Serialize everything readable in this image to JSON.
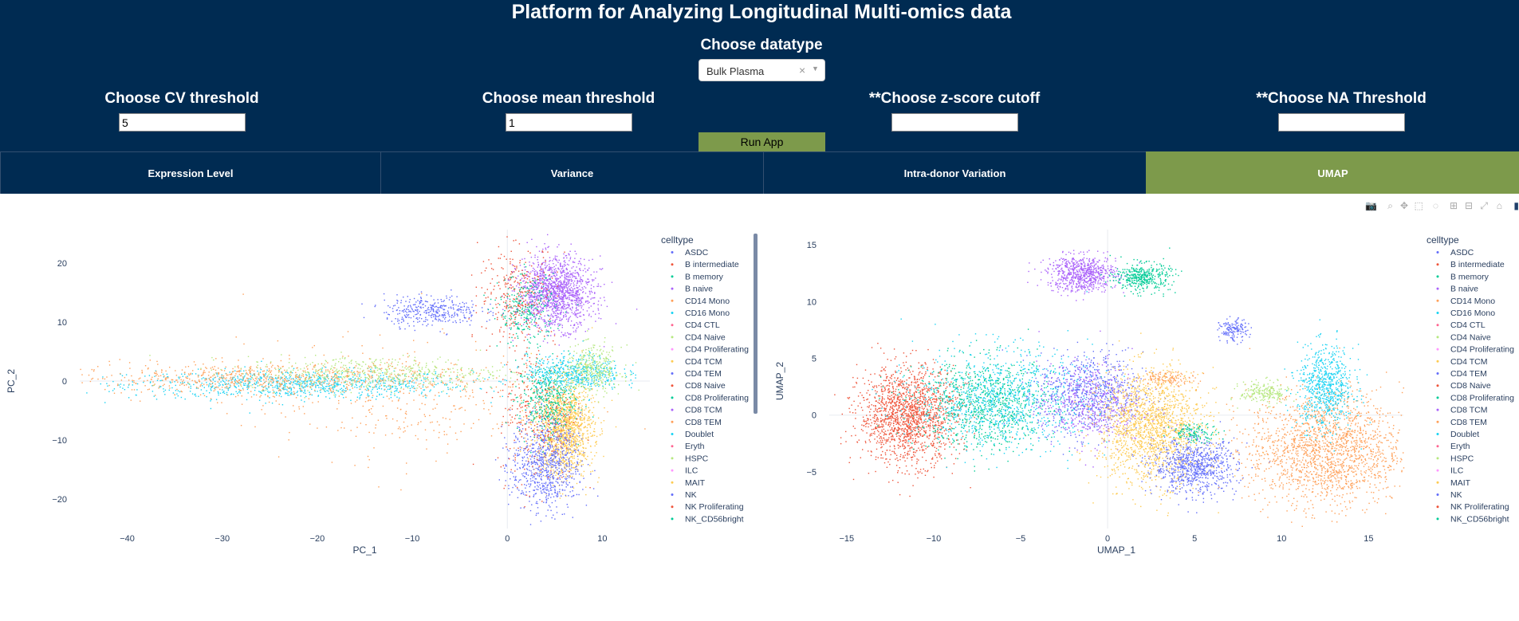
{
  "header": {
    "title": "Platform for Analyzing Longitudinal Multi-omics data",
    "datatype_label": "Choose datatype",
    "datatype_value": "Bulk Plasma",
    "cv_label": "Choose CV threshold",
    "cv_value": "5",
    "mean_label": "Choose mean threshold",
    "mean_value": "1",
    "zscore_label": "**Choose z-score cutoff",
    "zscore_value": "",
    "na_label": "**Choose NA Threshold",
    "na_value": "",
    "run_label": "Run App"
  },
  "tabs": [
    {
      "label": "Expression Level",
      "active": false
    },
    {
      "label": "Variance",
      "active": false
    },
    {
      "label": "Intra-donor Variation",
      "active": false
    },
    {
      "label": "UMAP",
      "active": true
    }
  ],
  "legend": {
    "title": "celltype",
    "items": [
      {
        "name": "ASDC",
        "color": "#636efa"
      },
      {
        "name": "B intermediate",
        "color": "#ef553b"
      },
      {
        "name": "B memory",
        "color": "#00cc96"
      },
      {
        "name": "B naive",
        "color": "#ab63fa"
      },
      {
        "name": "CD14 Mono",
        "color": "#ffa15a"
      },
      {
        "name": "CD16 Mono",
        "color": "#19d3f3"
      },
      {
        "name": "CD4 CTL",
        "color": "#ff6692"
      },
      {
        "name": "CD4 Naive",
        "color": "#b6e880"
      },
      {
        "name": "CD4 Proliferating",
        "color": "#ff97ff"
      },
      {
        "name": "CD4 TCM",
        "color": "#fecb52"
      },
      {
        "name": "CD4 TEM",
        "color": "#636efa"
      },
      {
        "name": "CD8 Naive",
        "color": "#ef553b"
      },
      {
        "name": "CD8 Proliferating",
        "color": "#00cc96"
      },
      {
        "name": "CD8 TCM",
        "color": "#ab63fa"
      },
      {
        "name": "CD8 TEM",
        "color": "#ffa15a"
      },
      {
        "name": "Doublet",
        "color": "#19d3f3"
      },
      {
        "name": "Eryth",
        "color": "#ff6692"
      },
      {
        "name": "HSPC",
        "color": "#b6e880"
      },
      {
        "name": "ILC",
        "color": "#ff97ff"
      },
      {
        "name": "MAIT",
        "color": "#fecb52"
      },
      {
        "name": "NK",
        "color": "#636efa"
      },
      {
        "name": "NK Proliferating",
        "color": "#ef553b"
      },
      {
        "name": "NK_CD56bright",
        "color": "#00cc96"
      }
    ]
  },
  "chart_data": [
    {
      "type": "scatter",
      "xlabel": "PC_1",
      "ylabel": "PC_2",
      "xlim": [
        -45,
        15
      ],
      "ylim": [
        -25,
        25
      ],
      "xticks": [
        -40,
        -30,
        -20,
        -10,
        0,
        10
      ],
      "yticks": [
        -20,
        -10,
        0,
        10,
        20
      ],
      "clusters": [
        {
          "celltype": "CD16 Mono",
          "color": "#19d3f3",
          "cx": -22,
          "cy": -0.5,
          "sx": 9,
          "sy": 1.2,
          "n": 900
        },
        {
          "celltype": "CD14 Mono",
          "color": "#ffa15a",
          "cx": -26,
          "cy": 0.5,
          "sx": 10,
          "sy": 1.3,
          "n": 700
        },
        {
          "celltype": "CD4 Naive",
          "color": "#b6e880",
          "cx": -14,
          "cy": 1.5,
          "sx": 7,
          "sy": 1.4,
          "n": 500
        },
        {
          "celltype": "CD14 Mono",
          "color": "#ffa15a",
          "cx": -12,
          "cy": -3,
          "sx": 8,
          "sy": 5,
          "n": 350
        },
        {
          "celltype": "ASDC",
          "color": "#636efa",
          "cx": -8,
          "cy": 12,
          "sx": 2.5,
          "sy": 1.3,
          "n": 350
        },
        {
          "celltype": "B naive",
          "color": "#ab63fa",
          "cx": 5,
          "cy": 15,
          "sx": 2,
          "sy": 3,
          "n": 1400
        },
        {
          "celltype": "B intermediate",
          "color": "#ef553b",
          "cx": 1,
          "cy": 15,
          "sx": 2,
          "sy": 4,
          "n": 300
        },
        {
          "celltype": "B memory",
          "color": "#00cc96",
          "cx": 2,
          "cy": 12,
          "sx": 1.5,
          "sy": 3,
          "n": 250
        },
        {
          "celltype": "CD4 TCM",
          "color": "#fecb52",
          "cx": 6,
          "cy": -8,
          "sx": 1.5,
          "sy": 4,
          "n": 1300
        },
        {
          "celltype": "NK",
          "color": "#636efa",
          "cx": 4,
          "cy": -14,
          "sx": 1.8,
          "sy": 4,
          "n": 800
        },
        {
          "celltype": "CD8 Naive",
          "color": "#ef553b",
          "cx": 3,
          "cy": -5,
          "sx": 2,
          "sy": 6,
          "n": 300
        },
        {
          "celltype": "CD8 Proliferating",
          "color": "#00cc96",
          "cx": 4,
          "cy": -3,
          "sx": 1.5,
          "sy": 3,
          "n": 350
        },
        {
          "celltype": "CD16 Mono",
          "color": "#19d3f3",
          "cx": 7,
          "cy": 1.5,
          "sx": 2.5,
          "sy": 1.5,
          "n": 500
        },
        {
          "celltype": "CD4 Naive",
          "color": "#b6e880",
          "cx": 9,
          "cy": 2,
          "sx": 1.5,
          "sy": 2,
          "n": 350
        }
      ]
    },
    {
      "type": "scatter",
      "xlabel": "UMAP_1",
      "ylabel": "UMAP_2",
      "xlim": [
        -16,
        17
      ],
      "ylim": [
        -10,
        16
      ],
      "xticks": [
        -15,
        -10,
        -5,
        0,
        5,
        10,
        15
      ],
      "yticks": [
        -5,
        0,
        5,
        10,
        15
      ],
      "clusters": [
        {
          "celltype": "B intermediate",
          "color": "#ef553b",
          "cx": -11.5,
          "cy": 0,
          "sx": 1.4,
          "sy": 2.1,
          "n": 1600
        },
        {
          "celltype": "CD8 Proliferating",
          "color": "#00cc96",
          "cx": -7,
          "cy": 1,
          "sx": 2,
          "sy": 2,
          "n": 900
        },
        {
          "celltype": "CD16 Mono",
          "color": "#19d3f3",
          "cx": -6,
          "cy": 1.5,
          "sx": 2.5,
          "sy": 2.2,
          "n": 900
        },
        {
          "celltype": "CD4 TEM",
          "color": "#636efa",
          "cx": -1,
          "cy": 2,
          "sx": 1.5,
          "sy": 1.8,
          "n": 700
        },
        {
          "celltype": "CD8 TCM",
          "color": "#ab63fa",
          "cx": -1,
          "cy": 1,
          "sx": 1.5,
          "sy": 1.8,
          "n": 500
        },
        {
          "celltype": "CD4 TCM",
          "color": "#fecb52",
          "cx": 2.5,
          "cy": -1,
          "sx": 1.5,
          "sy": 2.5,
          "n": 1600
        },
        {
          "celltype": "NK",
          "color": "#636efa",
          "cx": 5,
          "cy": -4.5,
          "sx": 1.2,
          "sy": 1.2,
          "n": 800
        },
        {
          "celltype": "B naive",
          "color": "#ab63fa",
          "cx": -1.5,
          "cy": 12.5,
          "sx": 1,
          "sy": 0.8,
          "n": 700
        },
        {
          "celltype": "B memory",
          "color": "#00cc96",
          "cx": 2,
          "cy": 12.2,
          "sx": 0.8,
          "sy": 0.6,
          "n": 400
        },
        {
          "celltype": "CD14 Mono",
          "color": "#ffa15a",
          "cx": 12.5,
          "cy": -3,
          "sx": 2.2,
          "sy": 2.5,
          "n": 1800
        },
        {
          "celltype": "CD16 Mono",
          "color": "#19d3f3",
          "cx": 12.5,
          "cy": 2.5,
          "sx": 0.8,
          "sy": 1.8,
          "n": 700
        },
        {
          "celltype": "CD4 Naive",
          "color": "#b6e880",
          "cx": 9,
          "cy": 2,
          "sx": 0.7,
          "sy": 0.5,
          "n": 200
        },
        {
          "celltype": "ASDC",
          "color": "#636efa",
          "cx": 7.2,
          "cy": 7.5,
          "sx": 0.4,
          "sy": 0.5,
          "n": 150
        },
        {
          "celltype": "CD8 Proliferating",
          "color": "#00cc96",
          "cx": 5,
          "cy": -1.5,
          "sx": 0.7,
          "sy": 0.4,
          "n": 120
        },
        {
          "celltype": "CD14 Mono",
          "color": "#ffa15a",
          "cx": 3.5,
          "cy": 3.3,
          "sx": 0.8,
          "sy": 0.3,
          "n": 120
        }
      ]
    }
  ]
}
